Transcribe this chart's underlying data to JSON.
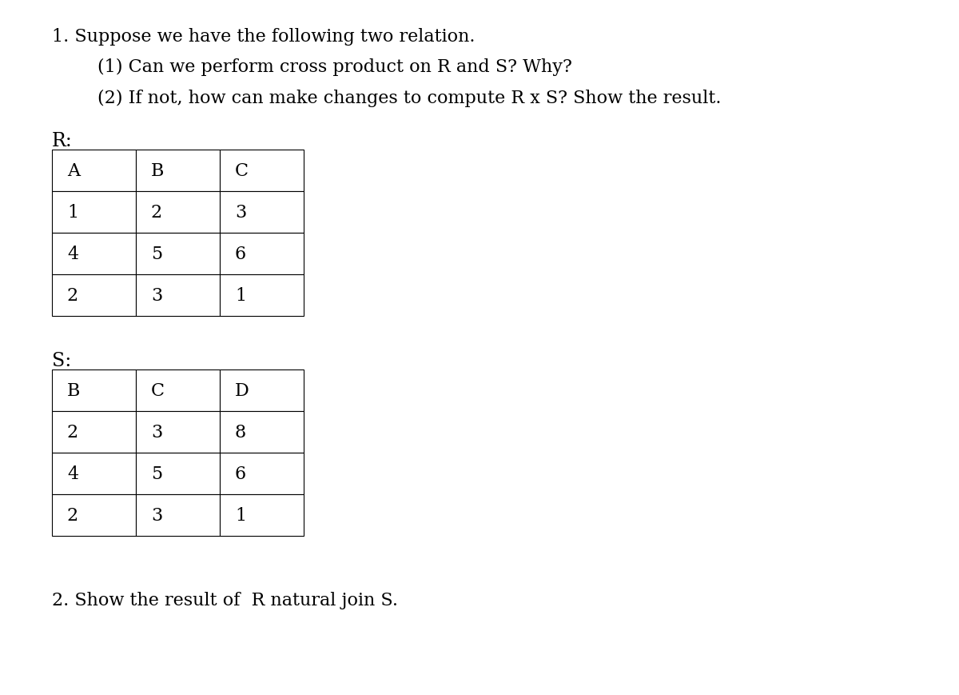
{
  "title_line1": "1. Suppose we have the following two relation.",
  "title_line2": "        (1) Can we perform cross product on R and S? Why?",
  "title_line3": "        (2) If not, how can make changes to compute R x S? Show the result.",
  "label_R": "R:",
  "label_S": "S:",
  "question2": "2. Show the result of  R natural join S.",
  "R_headers": [
    "A",
    "B",
    "C"
  ],
  "R_rows": [
    [
      "1",
      "2",
      "3"
    ],
    [
      "4",
      "5",
      "6"
    ],
    [
      "2",
      "3",
      "1"
    ]
  ],
  "S_headers": [
    "B",
    "C",
    "D"
  ],
  "S_rows": [
    [
      "2",
      "3",
      "8"
    ],
    [
      "4",
      "5",
      "6"
    ],
    [
      "2",
      "3",
      "1"
    ]
  ],
  "bg_color": "#ffffff",
  "text_color": "#000000",
  "font_size_title": 16,
  "font_size_table": 16,
  "font_size_label": 17
}
